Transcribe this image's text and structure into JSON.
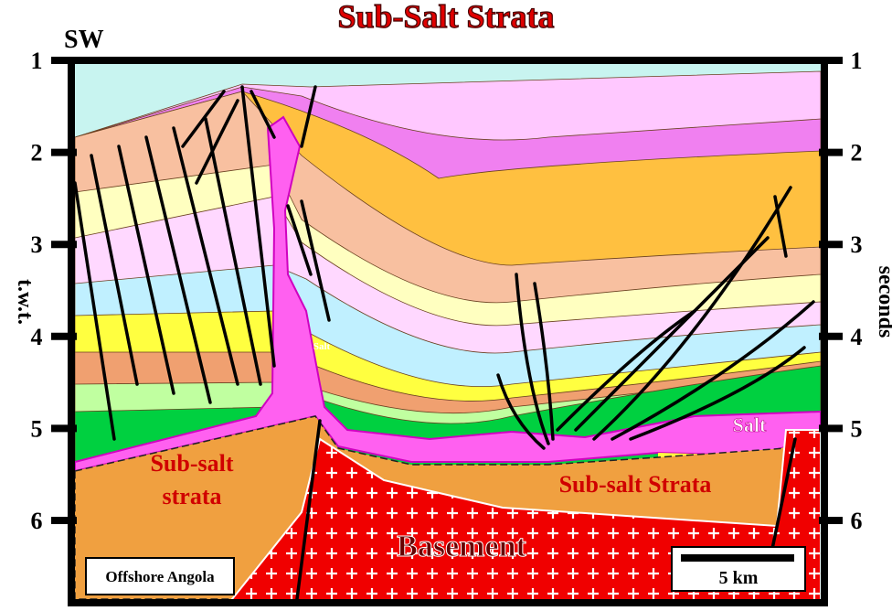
{
  "title": "Sub-Salt Strata",
  "direction": "SW",
  "axis": {
    "left_label": "t.w.t.",
    "right_label": "seconds",
    "ticks": [
      1,
      2,
      3,
      4,
      5,
      6
    ]
  },
  "labels": {
    "salt_diapir": "Salt",
    "salt_right": "Salt",
    "subsalt_left": [
      "Sub-salt",
      "strata"
    ],
    "subsalt_right": "Sub-salt Strata",
    "basement": "Basement"
  },
  "location": "Offshore Angola",
  "scale_bar": "5 km"
}
